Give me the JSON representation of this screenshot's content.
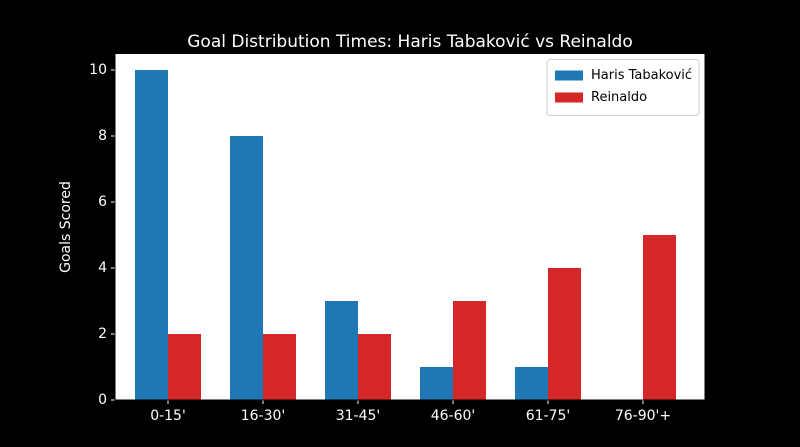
{
  "chart_data": {
    "type": "bar",
    "title": "Goal Distribution Times: Haris Tabaković vs Reinaldo",
    "y_label": "Goals Scored",
    "categories": [
      "0-15'",
      "16-30'",
      "31-45'",
      "46-60'",
      "61-75'",
      "76-90'+"
    ],
    "series": [
      {
        "name": "Haris Tabaković",
        "color": "#1f77b4",
        "values": [
          10,
          8,
          3,
          1,
          1,
          0
        ]
      },
      {
        "name": "Reinaldo",
        "color": "#d62728",
        "values": [
          2,
          2,
          2,
          3,
          4,
          5
        ]
      }
    ],
    "ylim": [
      0,
      10.5
    ],
    "yticks": [
      0,
      2,
      4,
      6,
      8,
      10
    ],
    "grid": false,
    "legend": "upper right"
  }
}
